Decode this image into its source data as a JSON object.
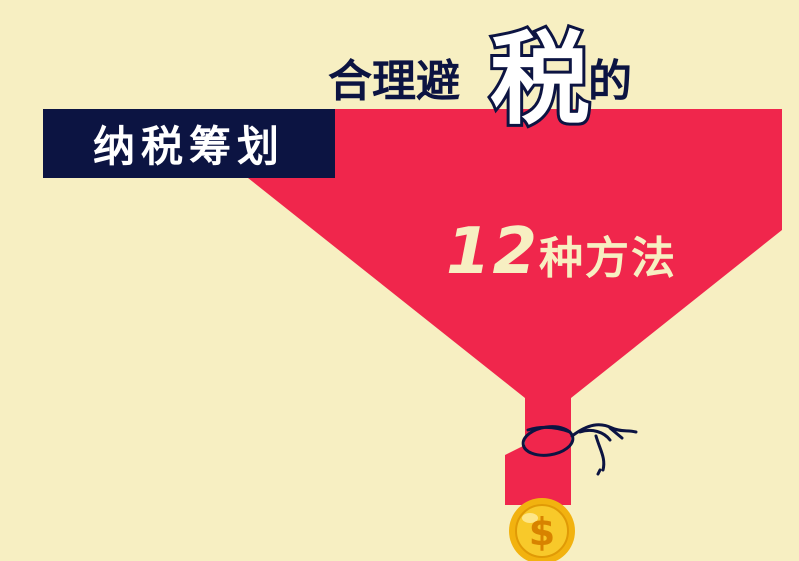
{
  "banner": {
    "label": "纳税筹划",
    "title_part1": "合理避",
    "title_highlight": "税",
    "title_part2": "的",
    "methods_number": "12",
    "methods_text": "种方法"
  },
  "colors": {
    "background": "#f7efc2",
    "navy": "#0c1442",
    "funnel_red": "#f0264c",
    "coin_gold": "#f2b20f"
  },
  "icons": [
    "funnel-shape",
    "rope-knot-icon",
    "gold-coin-icon",
    "dollar-sign-icon"
  ]
}
